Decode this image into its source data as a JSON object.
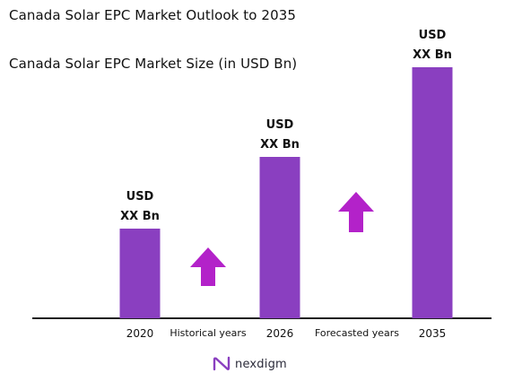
{
  "header": {
    "title": "Canada Solar EPC Market Outlook to 2035",
    "subtitle": "Canada Solar EPC Market Size (in USD Bn)"
  },
  "chart_data": {
    "type": "bar",
    "title": "Canada Solar EPC Market Outlook to 2035",
    "subtitle": "Canada Solar EPC Market Size (in USD Bn)",
    "categories": [
      "2020",
      "2026",
      "2035"
    ],
    "values": [
      1.0,
      1.8,
      2.8
    ],
    "value_labels": [
      [
        "USD",
        "XX Bn"
      ],
      [
        "USD",
        "XX Bn"
      ],
      [
        "USD",
        "XX Bn"
      ]
    ],
    "period_labels": [
      "Historical years",
      "Forecasted years"
    ],
    "ylim": [
      0,
      3.0
    ],
    "grid": false,
    "legend": "none",
    "colors": {
      "bar": "#8a3fc0",
      "arrow": "#b322c9",
      "axis": "#222222"
    }
  },
  "footer": {
    "brand": "nexdigm",
    "icon": "nexdigm-logo-icon"
  }
}
